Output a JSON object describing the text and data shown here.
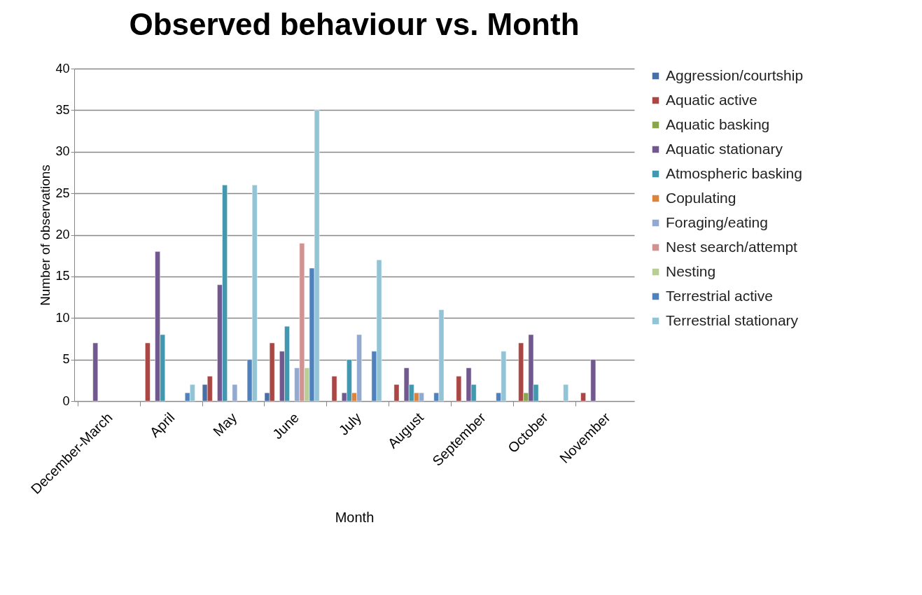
{
  "chart_data": {
    "type": "bar",
    "title": "Observed behaviour vs. Month",
    "xlabel": "Month",
    "ylabel": "Number of observations",
    "categories": [
      "December-March",
      "April",
      "May",
      "June",
      "July",
      "August",
      "September",
      "October",
      "November"
    ],
    "series": [
      {
        "name": "Aggression/courtship",
        "color": "#4a6fa5",
        "values": [
          null,
          null,
          2,
          1,
          null,
          null,
          null,
          null,
          null
        ]
      },
      {
        "name": "Aquatic active",
        "color": "#aa4643",
        "values": [
          null,
          7,
          3,
          7,
          3,
          2,
          3,
          7,
          1
        ]
      },
      {
        "name": "Aquatic basking",
        "color": "#89a54e",
        "values": [
          null,
          null,
          null,
          null,
          null,
          null,
          null,
          1,
          null
        ]
      },
      {
        "name": "Aquatic stationary",
        "color": "#71588f",
        "values": [
          7,
          18,
          14,
          6,
          1,
          4,
          4,
          8,
          5
        ]
      },
      {
        "name": "Atmospheric basking",
        "color": "#4198af",
        "values": [
          null,
          8,
          26,
          9,
          5,
          2,
          2,
          2,
          null
        ]
      },
      {
        "name": "Copulating",
        "color": "#db843d",
        "values": [
          null,
          null,
          null,
          null,
          1,
          1,
          null,
          null,
          null
        ]
      },
      {
        "name": "Foraging/eating",
        "color": "#93a9cf",
        "values": [
          null,
          null,
          2,
          4,
          8,
          1,
          null,
          null,
          null
        ]
      },
      {
        "name": "Nest search/attempt",
        "color": "#d19392",
        "values": [
          null,
          null,
          null,
          19,
          null,
          null,
          null,
          null,
          null
        ]
      },
      {
        "name": "Nesting",
        "color": "#b9cd96",
        "values": [
          null,
          null,
          null,
          4,
          null,
          null,
          null,
          null,
          null
        ]
      },
      {
        "name": "Terrestrial active",
        "color": "#4f81bd",
        "values": [
          null,
          1,
          5,
          16,
          6,
          1,
          1,
          null,
          null
        ]
      },
      {
        "name": "Terrestrial stationary",
        "color": "#93c4d6",
        "values": [
          null,
          2,
          26,
          35,
          17,
          11,
          6,
          2,
          null
        ]
      }
    ],
    "ylim": [
      0,
      40
    ],
    "yticks": [
      0,
      5,
      10,
      15,
      20,
      25,
      30,
      35,
      40
    ],
    "grid": "y",
    "legend": "right"
  }
}
